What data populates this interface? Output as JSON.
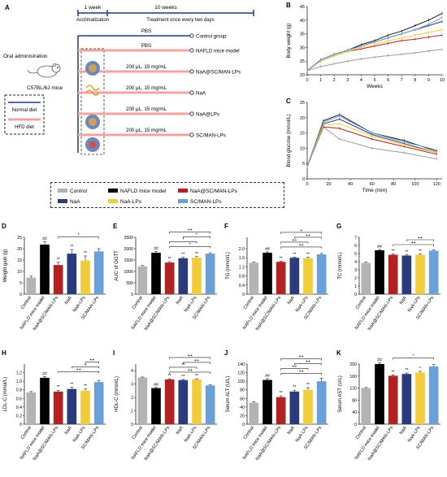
{
  "panel_labels": {
    "A": "A",
    "B": "B",
    "C": "C",
    "D": "D",
    "E": "E",
    "F": "F",
    "G": "G",
    "H": "H",
    "I": "I",
    "J": "J",
    "K": "K"
  },
  "schematic": {
    "week1": "1 week",
    "week10": "10 weeks",
    "acclimatization": "Acclimatization",
    "treatment": "Treatment once every two days",
    "oral": "Oral administration",
    "mice": "C57BL/6J mice",
    "normal_diet": "Normal diet",
    "hfd_diet": "HFD diet",
    "rows": [
      {
        "above": "PBS",
        "label": "Control group",
        "color": "#1f3a7a"
      },
      {
        "above": "PBS",
        "label": "NAFLD mice model",
        "color": "#f4a3a3"
      },
      {
        "above": "200 μL, 15 mg/mL",
        "label": "NaA@SC/MAN-LPs",
        "color": "#f4a3a3"
      },
      {
        "above": "200 μL, 15 mg/mL",
        "label": "NaA",
        "color": "#f4a3a3"
      },
      {
        "above": "200 μL, 15 mg/mL",
        "label": "NaA@LPs",
        "color": "#f4a3a3"
      },
      {
        "above": "200 μL, 15 mg/mL",
        "label": "SC/MAN-LPs",
        "color": "#f4a3a3"
      }
    ]
  },
  "legend": [
    {
      "name": "Control",
      "color": "#b3b3b3"
    },
    {
      "name": "NAFLD mice model",
      "color": "#000000"
    },
    {
      "name": "NaA@SC/MAN-LPs",
      "color": "#b22222"
    },
    {
      "name": "NaA",
      "color": "#2b3a7a"
    },
    {
      "name": "NaA-LPs",
      "color": "#f2cd3a"
    },
    {
      "name": "SC/MAN-LPs",
      "color": "#6a9fd8"
    }
  ],
  "bar_categories": [
    "Control",
    "NAFLD mice model",
    "NaA@SC/MAN-LPs",
    "NaA",
    "NaA-LPs",
    "SC/MAN-LPs"
  ],
  "chart_data": [
    {
      "id": "B",
      "type": "line",
      "xlabel": "Weeks",
      "ylabel": "Body weight (g)",
      "x": [
        0,
        1,
        2,
        3,
        4,
        5,
        6,
        7,
        8,
        9,
        10
      ],
      "xlim": [
        0,
        10
      ],
      "ylim": [
        20,
        45
      ],
      "xticks": [
        "0",
        "1",
        "2",
        "3",
        "4",
        "5",
        "6",
        "7",
        "8",
        "9",
        "10"
      ],
      "yticks": [
        "20",
        "25",
        "30",
        "35",
        "40",
        "45"
      ],
      "series": [
        {
          "name": "Control",
          "color": "#9a9a9a",
          "values": [
            21.5,
            23,
            24,
            25,
            25.8,
            26.5,
            27,
            27.5,
            28,
            28.7,
            29.3
          ]
        },
        {
          "name": "NAFLD mice model",
          "color": "#1a1a1a",
          "values": [
            21.5,
            25.5,
            27.5,
            29,
            31,
            32.5,
            34.5,
            36,
            38,
            40,
            42.5
          ]
        },
        {
          "name": "NaA@SC/MAN-LPs",
          "color": "#b22222",
          "values": [
            21.5,
            25,
            27,
            28.5,
            29.5,
            30.5,
            31.5,
            32.5,
            33,
            33.8,
            34.5
          ]
        },
        {
          "name": "NaA",
          "color": "#2b3a7a",
          "values": [
            21.5,
            25.5,
            27.5,
            29,
            30.5,
            32,
            33.5,
            35,
            36.5,
            38,
            39.5
          ]
        },
        {
          "name": "NaA-LPs",
          "color": "#f2cd3a",
          "values": [
            21.5,
            25,
            27,
            28.5,
            30,
            31,
            32.5,
            33.5,
            34.5,
            35.5,
            36.5
          ]
        },
        {
          "name": "SC/MAN-LPs",
          "color": "#6a9fd8",
          "values": [
            21.5,
            25.5,
            27.5,
            29,
            30.5,
            32,
            33.5,
            35,
            36.5,
            38.5,
            41
          ]
        }
      ]
    },
    {
      "id": "C",
      "type": "line",
      "xlabel": "Time (min)",
      "ylabel": "Blood glucose (mmol/L)",
      "x": [
        0,
        15,
        30,
        60,
        90,
        120
      ],
      "xlim": [
        0,
        125
      ],
      "ylim": [
        0,
        25
      ],
      "xticks": [
        "0",
        "20",
        "40",
        "60",
        "80",
        "100",
        "120"
      ],
      "yticks": [
        "0",
        "5",
        "10",
        "15",
        "20",
        "25"
      ],
      "series": [
        {
          "name": "Control",
          "color": "#9a9a9a",
          "values": [
            4,
            17,
            13,
            10,
            8.5,
            6.5
          ]
        },
        {
          "name": "NAFLD mice model",
          "color": "#1a1a1a",
          "values": [
            4,
            19,
            21,
            15,
            12.5,
            9
          ]
        },
        {
          "name": "NaA@SC/MAN-LPs",
          "color": "#b22222",
          "values": [
            4,
            17,
            16.5,
            13,
            10.5,
            8
          ]
        },
        {
          "name": "NaA",
          "color": "#2b3a7a",
          "values": [
            4,
            18,
            19.5,
            14.5,
            11.5,
            8.5
          ]
        },
        {
          "name": "NaA-LPs",
          "color": "#f2cd3a",
          "values": [
            4,
            17.5,
            18,
            14,
            11,
            8.5
          ]
        },
        {
          "name": "SC/MAN-LPs",
          "color": "#6a9fd8",
          "values": [
            4,
            18.5,
            20.5,
            15,
            12,
            9.5
          ]
        }
      ]
    },
    {
      "id": "D",
      "type": "bar",
      "ylabel": "Weight gain (g)",
      "ylim": [
        0,
        25
      ],
      "yticks": [
        "0",
        "5",
        "10",
        "15",
        "20",
        "25"
      ],
      "values": [
        7.3,
        21.8,
        12.8,
        17.8,
        14.8,
        18.8
      ],
      "errors": [
        0.6,
        1.2,
        1.2,
        1.8,
        2.0,
        1.2
      ],
      "annotations": [
        "",
        "##",
        "**",
        "**",
        "**",
        ""
      ],
      "brackets": [
        {
          "from": 2,
          "to": 5,
          "level": 0,
          "text": "*"
        }
      ]
    },
    {
      "id": "E",
      "type": "bar",
      "ylabel": "AUC of OGTT",
      "ylim": [
        0,
        2500
      ],
      "yticks": [
        "0",
        "500",
        "1000",
        "1500",
        "2000",
        "2500"
      ],
      "values": [
        1220,
        1820,
        1390,
        1580,
        1600,
        1780
      ],
      "errors": [
        40,
        60,
        40,
        40,
        50,
        40
      ],
      "annotations": [
        "",
        "##",
        "**",
        "**",
        "**",
        ""
      ],
      "brackets": [
        {
          "from": 2,
          "to": 5,
          "level": 0,
          "text": "*"
        },
        {
          "from": 2,
          "to": 4,
          "level": 1,
          "text": "*"
        },
        {
          "from": 3,
          "to": 5,
          "level": 2,
          "text": "*"
        },
        {
          "from": 2,
          "to": 5,
          "level": 3,
          "text": "++"
        }
      ]
    },
    {
      "id": "F",
      "type": "bar",
      "ylabel": "TG (mmol/L)",
      "ylim": [
        0,
        2.5
      ],
      "yticks": [
        "0",
        "0.4",
        "0.8",
        "1.2",
        "1.6",
        "2.0"
      ],
      "values": [
        1.38,
        1.82,
        1.42,
        1.6,
        1.58,
        1.75
      ],
      "errors": [
        0.03,
        0.04,
        0.03,
        0.03,
        0.04,
        0.04
      ],
      "annotations": [
        "",
        "##",
        "**",
        "**",
        "**",
        ""
      ],
      "brackets": [
        {
          "from": 2,
          "to": 5,
          "level": 0,
          "text": "++"
        },
        {
          "from": 2,
          "to": 4,
          "level": 1,
          "text": "++"
        },
        {
          "from": 3,
          "to": 5,
          "level": 2,
          "text": "++"
        },
        {
          "from": 2,
          "to": 5,
          "level": 3,
          "text": "+"
        }
      ]
    },
    {
      "id": "G",
      "type": "bar",
      "ylabel": "TC (mmol/L)",
      "ylim": [
        0,
        7
      ],
      "yticks": [
        "0",
        "1",
        "2",
        "3",
        "4",
        "5",
        "6",
        "7"
      ],
      "values": [
        3.85,
        5.4,
        4.85,
        4.75,
        4.85,
        5.35
      ],
      "errors": [
        0.08,
        0.1,
        0.1,
        0.1,
        0.1,
        0.12
      ],
      "annotations": [
        "",
        "##",
        "**",
        "**",
        "**",
        ""
      ],
      "brackets": [
        {
          "from": 2,
          "to": 5,
          "level": 0,
          "text": "++"
        },
        {
          "from": 3,
          "to": 5,
          "level": 1,
          "text": "++"
        }
      ]
    },
    {
      "id": "H",
      "type": "bar",
      "ylabel": "LDL-C (mmol/L)",
      "ylim": [
        0,
        1.4
      ],
      "yticks": [
        "0",
        "0.2",
        "0.4",
        "0.6",
        "0.8",
        "1.0",
        "1.2"
      ],
      "values": [
        0.74,
        1.08,
        0.76,
        0.82,
        0.78,
        0.98
      ],
      "errors": [
        0.02,
        0.03,
        0.03,
        0.04,
        0.04,
        0.04
      ],
      "annotations": [
        "",
        "##",
        "**",
        "**",
        "**",
        ""
      ],
      "brackets": [
        {
          "from": 2,
          "to": 5,
          "level": 0,
          "text": "++"
        },
        {
          "from": 3,
          "to": 5,
          "level": 1,
          "text": "+"
        },
        {
          "from": 4,
          "to": 5,
          "level": 2,
          "text": "++"
        }
      ]
    },
    {
      "id": "I",
      "type": "bar",
      "ylabel": "HDL-C (mmol/L)",
      "ylim": [
        0,
        4.5
      ],
      "yticks": [
        "0",
        "1",
        "2",
        "3",
        "4"
      ],
      "values": [
        3.5,
        2.7,
        3.35,
        3.3,
        3.35,
        2.9
      ],
      "errors": [
        0.03,
        0.05,
        0.05,
        0.05,
        0.05,
        0.05
      ],
      "annotations": [
        "",
        "##",
        "**",
        "**",
        "**",
        ""
      ],
      "brackets": [
        {
          "from": 2,
          "to": 5,
          "level": 0,
          "text": "++"
        },
        {
          "from": 2,
          "to": 4,
          "level": 1,
          "text": "**"
        },
        {
          "from": 3,
          "to": 5,
          "level": 2,
          "text": "++"
        },
        {
          "from": 2,
          "to": 5,
          "level": 3,
          "text": "++"
        }
      ]
    },
    {
      "id": "J",
      "type": "bar",
      "ylabel": "Serum ALT (U/L)",
      "ylim": [
        0,
        140
      ],
      "yticks": [
        "0",
        "20",
        "40",
        "60",
        "80",
        "100",
        "120",
        "140"
      ],
      "values": [
        50,
        103,
        63,
        76,
        80,
        100
      ],
      "errors": [
        2,
        3,
        3,
        3,
        5,
        7
      ],
      "annotations": [
        "",
        "##",
        "**",
        "**",
        "**",
        ""
      ],
      "brackets": [
        {
          "from": 2,
          "to": 5,
          "level": 0,
          "text": "++"
        },
        {
          "from": 2,
          "to": 4,
          "level": 1,
          "text": "++"
        },
        {
          "from": 3,
          "to": 5,
          "level": 2,
          "text": "++"
        },
        {
          "from": 2,
          "to": 5,
          "level": 3,
          "text": "++"
        }
      ]
    },
    {
      "id": "K",
      "type": "bar",
      "ylabel": "Serum AST (U/L)",
      "ylim": [
        0,
        200
      ],
      "yticks": [
        "0",
        "40",
        "80",
        "120",
        "160",
        "200"
      ],
      "values": [
        120,
        200,
        161,
        167,
        172,
        192
      ],
      "errors": [
        2,
        4,
        3,
        3,
        4,
        6
      ],
      "annotations": [
        "",
        "##",
        "**",
        "**",
        "*",
        ""
      ],
      "brackets": [
        {
          "from": 2,
          "to": 5,
          "level": 0,
          "text": "*"
        }
      ]
    }
  ]
}
